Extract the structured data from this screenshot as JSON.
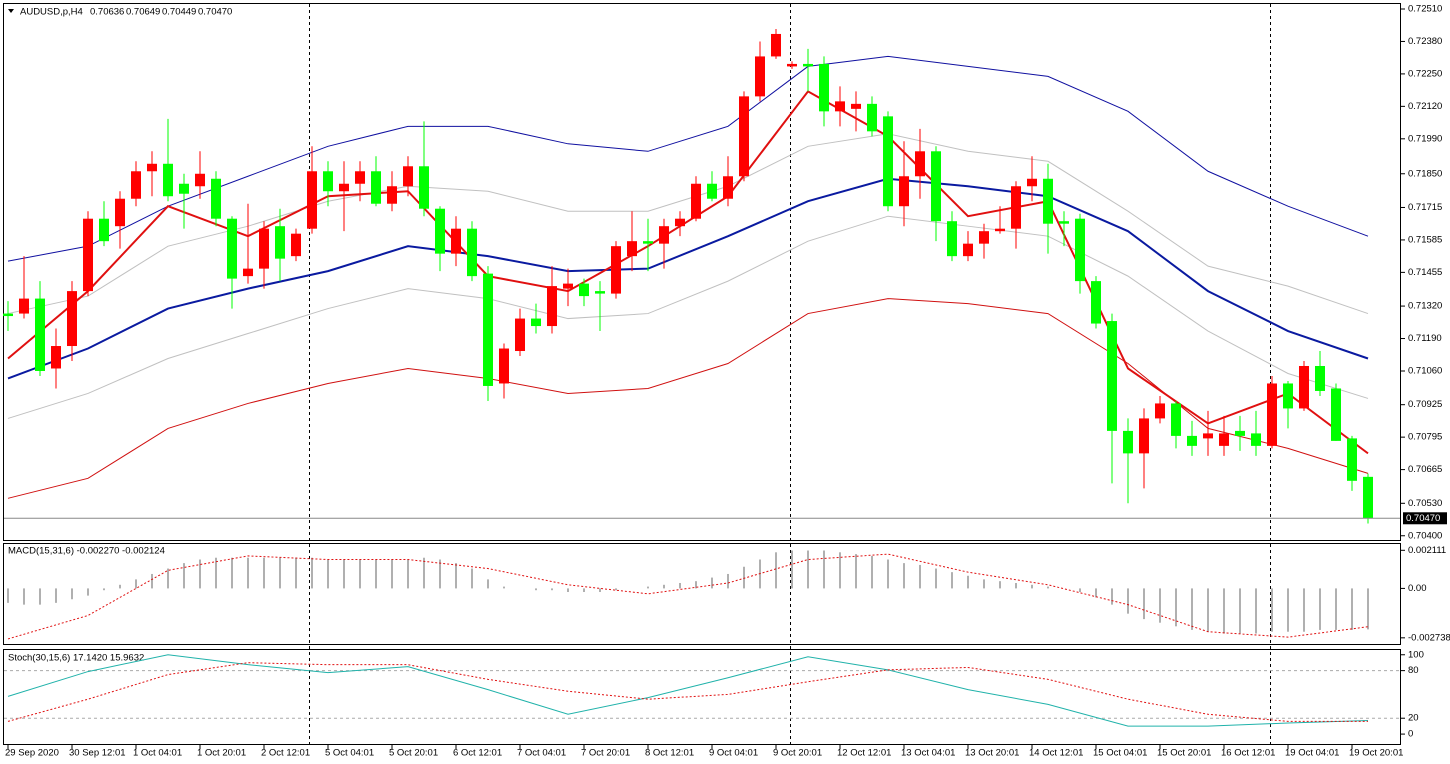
{
  "chart_data": {
    "type": "candlestick",
    "header": {
      "symbol": "AUDUSD,p,H4",
      "ohlc_labels": [
        "0.70636",
        "0.70649",
        "0.70449",
        "0.70470"
      ]
    },
    "up_color": "#ff0000",
    "down_color": "#00ff00",
    "candles": {
      "open": [
        0.7129,
        0.7129,
        0.7135,
        0.7107,
        0.7116,
        0.7138,
        0.7167,
        0.7164,
        0.7175,
        0.7186,
        0.7189,
        0.7181,
        0.718,
        0.7183,
        0.7167,
        0.7144,
        0.7147,
        0.7164,
        0.7152,
        0.7163,
        0.7186,
        0.7178,
        0.7181,
        0.7186,
        0.7173,
        0.718,
        0.7188,
        0.7171,
        0.7153,
        0.7163,
        0.7145,
        0.7101,
        0.7114,
        0.7127,
        0.7124,
        0.7139,
        0.7141,
        0.7138,
        0.7137,
        0.7152,
        0.7158,
        0.7157,
        0.7164,
        0.7167,
        0.7181,
        0.7175,
        0.7184,
        0.7216,
        0.7232,
        0.7228,
        0.7229,
        0.7229,
        0.721,
        0.7211,
        0.7213,
        0.7208,
        0.7172,
        0.7184,
        0.7194,
        0.7166,
        0.7152,
        0.7157,
        0.7162,
        0.7163,
        0.718,
        0.7183,
        0.7166,
        0.7167,
        0.7142,
        0.7126,
        0.7082,
        0.7073,
        0.7087,
        0.7093,
        0.708,
        0.7079,
        0.7076,
        0.7082,
        0.7081,
        0.7076,
        0.7101,
        0.7091,
        0.7108,
        0.7099,
        0.7079,
        0.70636
      ],
      "high": [
        0.7134,
        0.7152,
        0.7142,
        0.7123,
        0.7142,
        0.717,
        0.7174,
        0.7178,
        0.719,
        0.7194,
        0.7207,
        0.7185,
        0.7194,
        0.7186,
        0.7168,
        0.7173,
        0.7166,
        0.7171,
        0.7163,
        0.7196,
        0.719,
        0.719,
        0.719,
        0.7192,
        0.7186,
        0.7192,
        0.7206,
        0.7172,
        0.7168,
        0.7166,
        0.7148,
        0.7117,
        0.7131,
        0.7133,
        0.7148,
        0.7147,
        0.7143,
        0.7142,
        0.7158,
        0.717,
        0.7167,
        0.7167,
        0.717,
        0.7184,
        0.7186,
        0.7192,
        0.7218,
        0.7238,
        0.7243,
        0.723,
        0.7235,
        0.7232,
        0.722,
        0.7218,
        0.7216,
        0.721,
        0.7198,
        0.7203,
        0.7196,
        0.717,
        0.7162,
        0.7165,
        0.7172,
        0.7182,
        0.7192,
        0.7189,
        0.717,
        0.7169,
        0.7144,
        0.7129,
        0.7087,
        0.7091,
        0.7096,
        0.7094,
        0.7086,
        0.709,
        0.7088,
        0.7088,
        0.709,
        0.7104,
        0.7102,
        0.711,
        0.7114,
        0.7101,
        0.708,
        0.70649
      ],
      "low": [
        0.7122,
        0.7127,
        0.7104,
        0.7099,
        0.711,
        0.7136,
        0.7156,
        0.7155,
        0.7172,
        0.7176,
        0.7174,
        0.7163,
        0.7175,
        0.7164,
        0.7131,
        0.7141,
        0.7139,
        0.7142,
        0.715,
        0.7161,
        0.7172,
        0.7162,
        0.7174,
        0.7172,
        0.717,
        0.7176,
        0.7168,
        0.7146,
        0.7148,
        0.7142,
        0.7094,
        0.7095,
        0.7112,
        0.7121,
        0.7121,
        0.7132,
        0.7132,
        0.7122,
        0.7135,
        0.7146,
        0.7146,
        0.7147,
        0.716,
        0.7166,
        0.7174,
        0.7172,
        0.7182,
        0.7214,
        0.7231,
        0.7227,
        0.7218,
        0.7204,
        0.7204,
        0.7202,
        0.72,
        0.717,
        0.7164,
        0.7175,
        0.7158,
        0.715,
        0.715,
        0.7151,
        0.7161,
        0.7155,
        0.7174,
        0.7153,
        0.7156,
        0.7137,
        0.7123,
        0.7061,
        0.7053,
        0.7059,
        0.7085,
        0.7075,
        0.7072,
        0.7072,
        0.7072,
        0.7074,
        0.7072,
        0.7075,
        0.7083,
        0.709,
        0.7096,
        0.7078,
        0.7058,
        0.70449
      ],
      "close": [
        0.7128,
        0.7135,
        0.7106,
        0.7116,
        0.7138,
        0.7167,
        0.7158,
        0.7175,
        0.7186,
        0.7189,
        0.7176,
        0.7177,
        0.7185,
        0.7167,
        0.7143,
        0.7147,
        0.7163,
        0.7151,
        0.7161,
        0.7186,
        0.7178,
        0.7181,
        0.7186,
        0.7173,
        0.718,
        0.7188,
        0.7171,
        0.7153,
        0.7163,
        0.7144,
        0.71,
        0.7115,
        0.7127,
        0.7124,
        0.714,
        0.7141,
        0.7136,
        0.7137,
        0.7156,
        0.7158,
        0.7157,
        0.7164,
        0.7167,
        0.7181,
        0.7175,
        0.7184,
        0.7216,
        0.7232,
        0.7241,
        0.7229,
        0.7228,
        0.721,
        0.7214,
        0.7213,
        0.7202,
        0.7172,
        0.7184,
        0.7194,
        0.7166,
        0.7152,
        0.7157,
        0.7162,
        0.7163,
        0.718,
        0.7183,
        0.7165,
        0.7165,
        0.7142,
        0.7125,
        0.7082,
        0.7073,
        0.7087,
        0.7093,
        0.708,
        0.7076,
        0.7081,
        0.7081,
        0.708,
        0.7076,
        0.7101,
        0.7091,
        0.7108,
        0.7098,
        0.7078,
        0.7062,
        0.7047
      ]
    },
    "line_x": [
      0,
      5,
      10,
      15,
      20,
      25,
      30,
      35,
      40,
      45,
      50,
      55,
      60,
      65,
      70,
      75,
      80,
      85
    ],
    "lines": [
      {
        "color": "#1010a0",
        "width": 1,
        "values": [
          0.715,
          0.7156,
          0.7172,
          0.7184,
          0.7196,
          0.7204,
          0.7204,
          0.7197,
          0.7194,
          0.7204,
          0.7228,
          0.7232,
          0.7228,
          0.7224,
          0.721,
          0.7186,
          0.7172,
          0.716
        ]
      },
      {
        "color": "#c0c0c0",
        "width": 1,
        "values": [
          0.7129,
          0.7136,
          0.7156,
          0.7164,
          0.7174,
          0.718,
          0.7178,
          0.717,
          0.717,
          0.718,
          0.7196,
          0.7201,
          0.7194,
          0.719,
          0.717,
          0.7148,
          0.714,
          0.7129
        ]
      },
      {
        "color": "#0a1aa0",
        "width": 2,
        "values": [
          0.7103,
          0.7115,
          0.7131,
          0.7139,
          0.7146,
          0.7156,
          0.7152,
          0.7146,
          0.7147,
          0.716,
          0.7174,
          0.7183,
          0.718,
          0.7176,
          0.7162,
          0.7138,
          0.7122,
          0.7111
        ]
      },
      {
        "color": "#c0c0c0",
        "width": 1,
        "values": [
          0.7087,
          0.7097,
          0.7111,
          0.7121,
          0.7131,
          0.7139,
          0.7135,
          0.7127,
          0.7129,
          0.7142,
          0.7158,
          0.7168,
          0.7164,
          0.716,
          0.7144,
          0.7122,
          0.7105,
          0.7095
        ]
      },
      {
        "color": "#d01010",
        "width": 1,
        "values": [
          0.7055,
          0.7063,
          0.7083,
          0.7093,
          0.7101,
          0.7107,
          0.7103,
          0.7097,
          0.7099,
          0.7109,
          0.7129,
          0.7135,
          0.7133,
          0.7129,
          0.7109,
          0.7083,
          0.7075,
          0.7065
        ]
      },
      {
        "color": "#e01010",
        "width": 2,
        "values": [
          0.7111,
          0.7138,
          0.7172,
          0.716,
          0.7176,
          0.7178,
          0.7144,
          0.7138,
          0.7156,
          0.7176,
          0.7218,
          0.72,
          0.7168,
          0.7174,
          0.7107,
          0.7085,
          0.7097,
          0.7073
        ]
      }
    ],
    "ylim": [
      0.70383,
      0.7253
    ],
    "yticks": [
      {
        "value": 0.7251,
        "label": "0.72510"
      },
      {
        "value": 0.7238,
        "label": "0.72380"
      },
      {
        "value": 0.7225,
        "label": "0.72250"
      },
      {
        "value": 0.7212,
        "label": "0.72120"
      },
      {
        "value": 0.7199,
        "label": "0.71990"
      },
      {
        "value": 0.7185,
        "label": "0.71850"
      },
      {
        "value": 0.71715,
        "label": "0.71715"
      },
      {
        "value": 0.71585,
        "label": "0.71585"
      },
      {
        "value": 0.71455,
        "label": "0.71455"
      },
      {
        "value": 0.7132,
        "label": "0.71320"
      },
      {
        "value": 0.7119,
        "label": "0.71190"
      },
      {
        "value": 0.7106,
        "label": "0.71060"
      },
      {
        "value": 0.70925,
        "label": "0.70925"
      },
      {
        "value": 0.70795,
        "label": "0.70795"
      },
      {
        "value": 0.70665,
        "label": "0.70665"
      },
      {
        "value": 0.7053,
        "label": "0.70530"
      },
      {
        "value": 0.704,
        "label": "0.70400"
      }
    ],
    "time_labels": [
      "29 Sep 2020",
      "30 Sep 12:01",
      "1 Oct 04:01",
      "1 Oct 20:01",
      "2 Oct 12:01",
      "5 Oct 04:01",
      "5 Oct 20:01",
      "6 Oct 12:01",
      "7 Oct 04:01",
      "7 Oct 20:01",
      "8 Oct 12:01",
      "9 Oct 04:01",
      "9 Oct 20:01",
      "12 Oct 12:01",
      "13 Oct 04:01",
      "13 Oct 20:01",
      "14 Oct 12:01",
      "15 Oct 04:01",
      "15 Oct 20:01",
      "16 Oct 12:01",
      "19 Oct 04:01",
      "19 Oct 20:01"
    ],
    "macd": {
      "title": "MACD(15,31,6) -0.002270 -0.002124",
      "histogram": [
        -0.0008,
        -0.0009,
        -0.0009,
        -0.0008,
        -0.0006,
        -0.0004,
        -0.0001,
        0.0002,
        0.0005,
        0.0008,
        0.0011,
        0.0014,
        0.0016,
        0.0017,
        0.0017,
        0.0017,
        0.0017,
        0.0017,
        0.0017,
        0.0017,
        0.0016,
        0.0016,
        0.0016,
        0.0016,
        0.0016,
        0.0016,
        0.0017,
        0.0016,
        0.0014,
        0.0011,
        0.0005,
        0.0001,
        0,
        -0.0001,
        -0.0001,
        -0.0002,
        -0.0002,
        -0.0002,
        -0.0001,
        0,
        0.0001,
        0.0002,
        0.0003,
        0.0004,
        0.0006,
        0.0008,
        0.0012,
        0.0016,
        0.002,
        0.0021,
        0.0021,
        0.0021,
        0.002,
        0.0019,
        0.0018,
        0.0016,
        0.0014,
        0.0013,
        0.0011,
        0.0009,
        0.0007,
        0.0005,
        0.0004,
        0.0003,
        0.0002,
        0.0001,
        0,
        -0.0002,
        -0.0005,
        -0.0009,
        -0.0014,
        -0.0017,
        -0.0019,
        -0.0021,
        -0.0023,
        -0.0024,
        -0.0025,
        -0.0025,
        -0.0025,
        -0.0024,
        -0.0024,
        -0.0024,
        -0.0023,
        -0.0023,
        -0.0023,
        -0.00227
      ],
      "signal": [
        -0.0028,
        -0.0015,
        0.001,
        0.0018,
        0.0016,
        0.0016,
        0.0011,
        0.0002,
        -0.0003,
        0.0003,
        0.0016,
        0.0019,
        0.0009,
        0.0002,
        -0.0009,
        -0.0024,
        -0.0027,
        -0.002124
      ],
      "ylim": [
        -0.00308,
        0.00246
      ],
      "yticks": [
        0.002111,
        {
          "value": 0,
          "label": "0.00"
        },
        -0.002738
      ]
    },
    "stoch": {
      "title": "Stoch(30,15,6) 17.1420 15.9632",
      "main": [
        47.5,
        78.8,
        100,
        87.5,
        77.5,
        85,
        56,
        25,
        46,
        71,
        97.5,
        81,
        56,
        37.5,
        10,
        10,
        14,
        17.142
      ],
      "signal": [
        16,
        44,
        75,
        90,
        87.5,
        87.5,
        69,
        54,
        44,
        50,
        66,
        81,
        84,
        69,
        44,
        25,
        16,
        15.9632
      ],
      "levels": [
        80,
        20
      ],
      "ylim": [
        -12.5,
        106
      ],
      "yticks": [
        100,
        80,
        20,
        0
      ]
    }
  }
}
